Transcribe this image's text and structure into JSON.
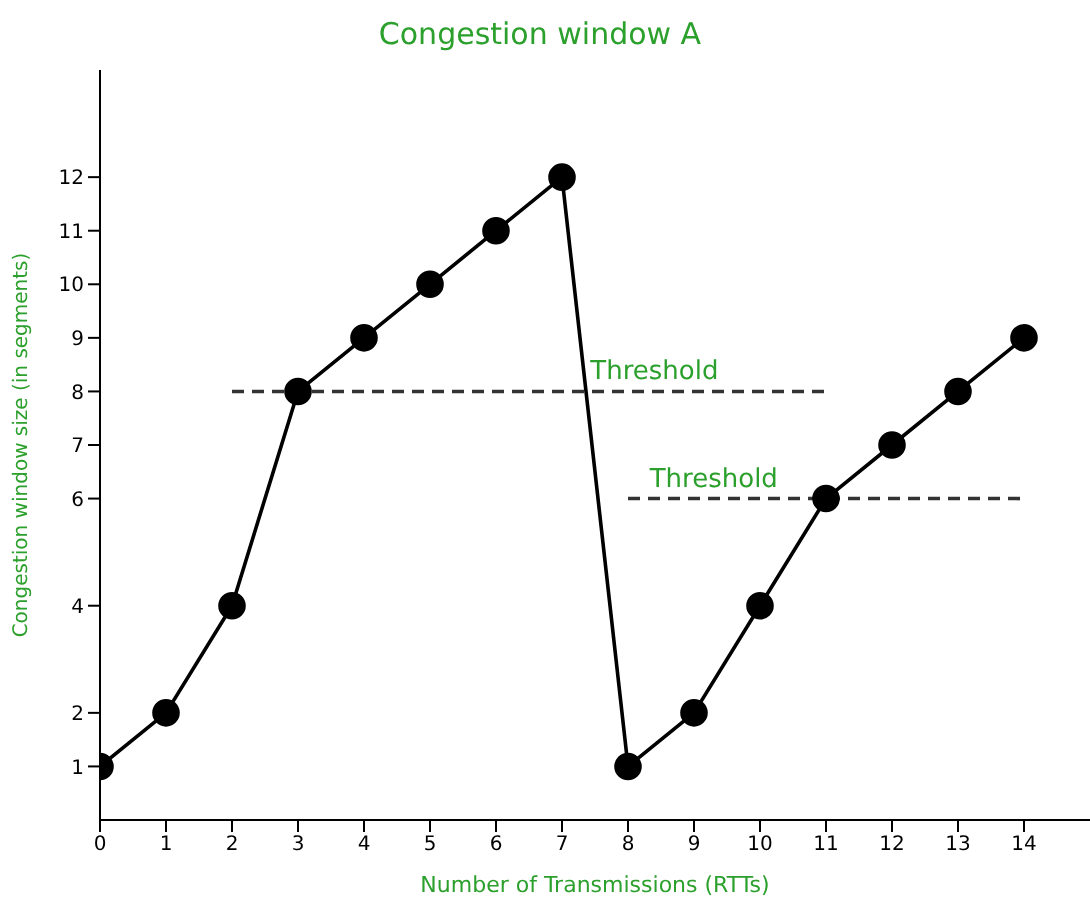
{
  "chart_data": {
    "type": "line",
    "title": "Congestion window A",
    "xlabel": "Number of Transmissions (RTTs)",
    "ylabel": "Congestion window size (in segments)",
    "x": [
      0,
      1,
      2,
      3,
      4,
      5,
      6,
      7,
      8,
      9,
      10,
      11,
      12,
      13,
      14
    ],
    "series": [
      {
        "color": "#000000",
        "values": [
          1,
          2,
          4,
          8,
          9,
          10,
          11,
          12,
          1,
          2,
          4,
          6,
          7,
          8,
          9
        ],
        "marker": "circle",
        "line_style": "solid"
      },
      {
        "type": "line",
        "color": "#333333",
        "x": [
          2,
          11
        ],
        "values": [
          8,
          8
        ],
        "marker": "none",
        "line_style": "dashed"
      },
      {
        "type": "line",
        "color": "#333333",
        "x": [
          8,
          14
        ],
        "values": [
          6,
          6
        ],
        "marker": "none",
        "line_style": "dashed"
      }
    ],
    "annotations": [
      {
        "text": "Threshold",
        "x": 8.4,
        "y": 8
      },
      {
        "text": "Threshold",
        "x": 9.3,
        "y": 6
      }
    ],
    "xlim": [
      0,
      15
    ],
    "xticks": [
      0,
      1,
      2,
      3,
      4,
      5,
      6,
      7,
      8,
      9,
      10,
      11,
      12,
      13,
      14
    ],
    "ylim": [
      0,
      14
    ],
    "yticks": [
      1,
      2,
      4,
      6,
      7,
      8,
      9,
      10,
      11,
      12
    ],
    "grid": false
  }
}
